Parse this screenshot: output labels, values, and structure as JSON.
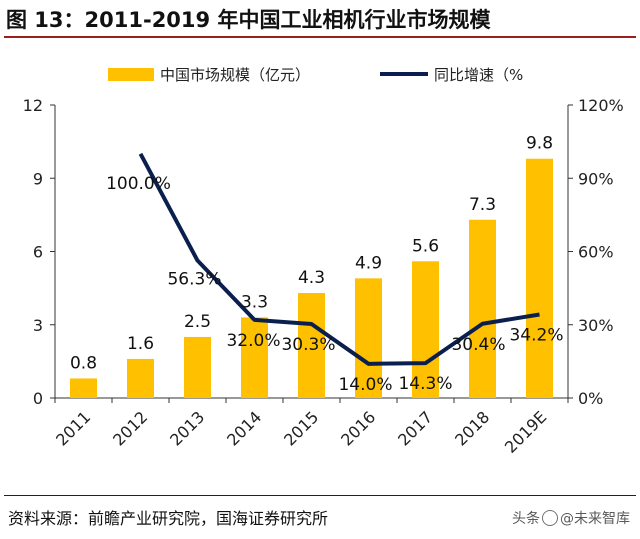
{
  "figure": {
    "title": "图 13：2011-2019 年中国工业相机行业市场规模",
    "source": "资料来源：前瞻产业研究院，国海证券研究所",
    "watermark": {
      "prefix": "头条",
      "handle": "@未来智库"
    }
  },
  "chart_data": {
    "type": "bar+line",
    "categories": [
      "2011",
      "2012",
      "2013",
      "2014",
      "2015",
      "2016",
      "2017",
      "2018",
      "2019E"
    ],
    "series": [
      {
        "name": "中国市场规模（亿元）",
        "type": "bar",
        "axis": "left",
        "values": [
          0.8,
          1.6,
          2.5,
          3.3,
          4.3,
          4.9,
          5.6,
          7.3,
          9.8
        ],
        "labels": [
          "0.8",
          "1.6",
          "2.5",
          "3.3",
          "4.3",
          "4.9",
          "5.6",
          "7.3",
          "9.8"
        ],
        "color": "#FFC000"
      },
      {
        "name": "同比增速（%",
        "type": "line",
        "axis": "right",
        "values": [
          null,
          100.0,
          56.3,
          32.0,
          30.3,
          14.0,
          14.3,
          30.4,
          34.2
        ],
        "labels": [
          "",
          "100.0%",
          "56.3%",
          "32.0%",
          "30.3%",
          "14.0%",
          "14.3%",
          "30.4%",
          "34.2%"
        ],
        "color": "#0B1F4F"
      }
    ],
    "y_left": {
      "min": 0,
      "max": 12,
      "ticks": [
        0,
        3,
        6,
        9,
        12
      ],
      "tick_labels": [
        "0",
        "3",
        "6",
        "9",
        "12"
      ]
    },
    "y_right": {
      "min": 0,
      "max": 120,
      "ticks": [
        0,
        30,
        60,
        90,
        120
      ],
      "tick_labels": [
        "0%",
        "30%",
        "60%",
        "90%",
        "120%"
      ]
    },
    "legend_position": "top"
  }
}
